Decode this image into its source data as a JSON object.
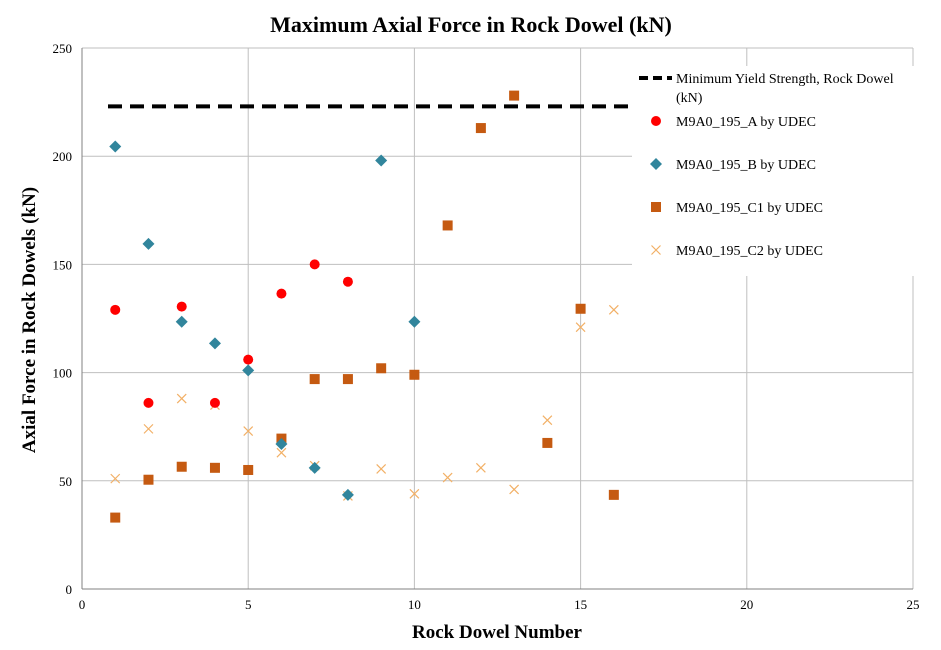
{
  "chart_data": {
    "type": "scatter",
    "title": "Maximum Axial Force in Rock Dowel (kN)",
    "xlabel": "Rock Dowel Number",
    "ylabel": "Axial Force in Rock Dowels (kN)",
    "xlim": [
      0,
      25
    ],
    "ylim": [
      0,
      250
    ],
    "x_ticks": [
      "0",
      "5",
      "10",
      "15",
      "20",
      "25"
    ],
    "y_ticks": [
      "0",
      "50",
      "100",
      "150",
      "200",
      "250"
    ],
    "grid": true,
    "legend_position": "top-right",
    "reference_line": {
      "name": "Minimum Yield Strength, Rock Dowel (kN)",
      "name_line1": "Minimum Yield Strength, Rock Dowel",
      "name_line2": "(kN)",
      "y": 223,
      "x_range": [
        0,
        16.5
      ],
      "color": "#000000",
      "style": "dashed"
    },
    "series": [
      {
        "name": "M9A0_195_A by UDEC",
        "marker": "circle",
        "color": "#ff0000",
        "points": [
          [
            1,
            129
          ],
          [
            2,
            86
          ],
          [
            3,
            130.5
          ],
          [
            4,
            86
          ],
          [
            5,
            106
          ],
          [
            6,
            136.5
          ],
          [
            7,
            150
          ],
          [
            8,
            142
          ]
        ]
      },
      {
        "name": "M9A0_195_B by UDEC",
        "marker": "diamond",
        "color": "#31859c",
        "points": [
          [
            1,
            204.5
          ],
          [
            2,
            159.5
          ],
          [
            3,
            123.5
          ],
          [
            4,
            113.5
          ],
          [
            5,
            101
          ],
          [
            6,
            67
          ],
          [
            7,
            56
          ],
          [
            8,
            43.5
          ],
          [
            9,
            198
          ],
          [
            10,
            123.5
          ]
        ]
      },
      {
        "name": "M9A0_195_C1 by UDEC",
        "marker": "square",
        "color": "#c55a11",
        "points": [
          [
            1,
            33
          ],
          [
            2,
            50.5
          ],
          [
            3,
            56.5
          ],
          [
            4,
            56
          ],
          [
            5,
            55
          ],
          [
            6,
            69.5
          ],
          [
            7,
            97
          ],
          [
            8,
            97
          ],
          [
            9,
            102
          ],
          [
            10,
            99
          ],
          [
            11,
            168
          ],
          [
            12,
            213
          ],
          [
            13,
            228
          ],
          [
            14,
            67.5
          ],
          [
            15,
            129.5
          ],
          [
            16,
            43.5
          ]
        ]
      },
      {
        "name": "M9A0_195_C2 by UDEC",
        "marker": "x",
        "color": "#f2b066",
        "points": [
          [
            1,
            51
          ],
          [
            2,
            74
          ],
          [
            3,
            88
          ],
          [
            4,
            85
          ],
          [
            5,
            73
          ],
          [
            6,
            63
          ],
          [
            7,
            57
          ],
          [
            8,
            43
          ],
          [
            9,
            55.5
          ],
          [
            10,
            44
          ],
          [
            11,
            51.5
          ],
          [
            12,
            56
          ],
          [
            13,
            46
          ],
          [
            14,
            78
          ],
          [
            15,
            121
          ],
          [
            16,
            129
          ]
        ]
      }
    ]
  }
}
